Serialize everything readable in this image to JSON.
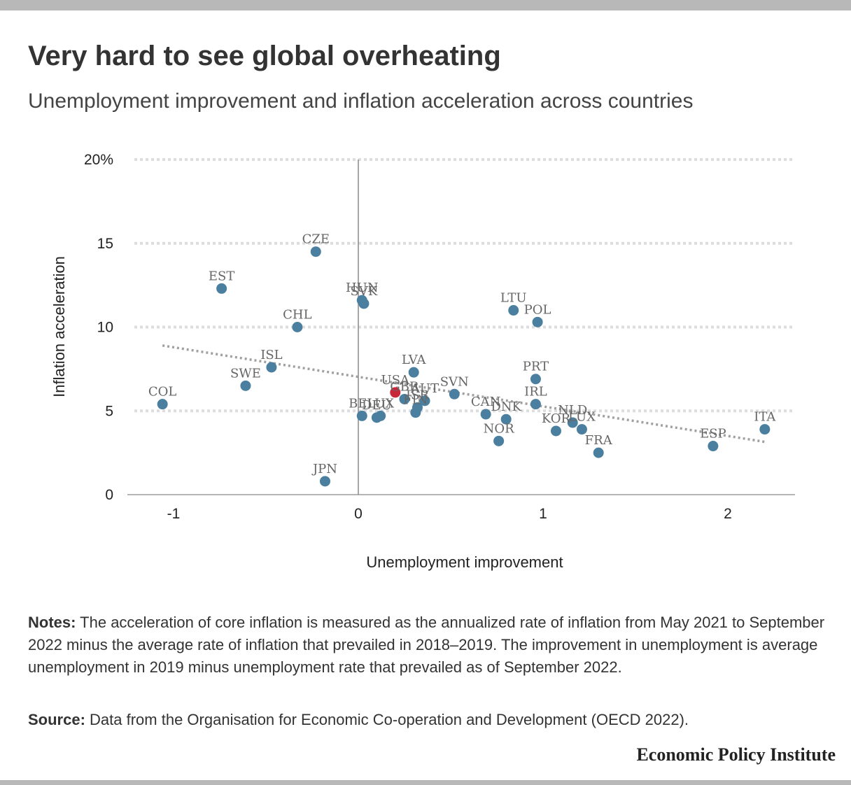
{
  "title": "Very hard to see global overheating",
  "subtitle": "Unemployment improvement and inflation acceleration across countries",
  "notes": {
    "label": "Notes:",
    "text": " The acceleration of core inflation is measured as the annualized rate of inflation from May 2021 to September 2022 minus the average rate of inflation that prevailed in 2018–2019. The improvement in unemployment is average unemployment in 2019 minus unemployment rate that prevailed as of September 2022."
  },
  "source": {
    "label": "Source:",
    "text": " Data from the Organisation for Economic Co-operation and Development (OECD 2022)."
  },
  "brand": "Economic Policy Institute",
  "colors": {
    "point": "#4a7fa0",
    "highlight": "#c8273a",
    "trend": "#a0a0a0",
    "grid": "#dddddd",
    "zero_axis": "#888888"
  },
  "chart_data": {
    "type": "scatter",
    "xlabel": "Unemployment improvement",
    "ylabel": "Inflation acceleration",
    "xlim": [
      -1.25,
      2.35
    ],
    "ylim": [
      0,
      20
    ],
    "x_ticks": [
      {
        "value": -1,
        "label": "-1"
      },
      {
        "value": 0,
        "label": "0"
      },
      {
        "value": 1,
        "label": "1"
      },
      {
        "value": 2,
        "label": "2"
      }
    ],
    "y_ticks": [
      {
        "value": 0,
        "label": "0"
      },
      {
        "value": 5,
        "label": "5"
      },
      {
        "value": 10,
        "label": "10"
      },
      {
        "value": 15,
        "label": "15"
      },
      {
        "value": 20,
        "label": "20%"
      }
    ],
    "grid": "horizontal-dotted",
    "points": [
      {
        "label": "COL",
        "x": -1.06,
        "y": 5.4
      },
      {
        "label": "EST",
        "x": -0.74,
        "y": 12.3
      },
      {
        "label": "SWE",
        "x": -0.61,
        "y": 6.5
      },
      {
        "label": "ISL",
        "x": -0.47,
        "y": 7.6
      },
      {
        "label": "CHL",
        "x": -0.33,
        "y": 10.0
      },
      {
        "label": "CZE",
        "x": -0.23,
        "y": 14.5
      },
      {
        "label": "JPN",
        "x": -0.18,
        "y": 0.8
      },
      {
        "label": "HUN",
        "x": 0.02,
        "y": 11.6
      },
      {
        "label": "SVK",
        "x": 0.03,
        "y": 11.4
      },
      {
        "label": "BEL",
        "x": 0.02,
        "y": 4.7
      },
      {
        "label": "DEU",
        "x": 0.1,
        "y": 4.6
      },
      {
        "label": "LUX",
        "x": 0.12,
        "y": 4.7
      },
      {
        "label": "USA",
        "x": 0.2,
        "y": 6.1,
        "highlight": true
      },
      {
        "label": "GBR",
        "x": 0.25,
        "y": 5.7
      },
      {
        "label": "LVA",
        "x": 0.3,
        "y": 7.3
      },
      {
        "label": "AUT",
        "x": 0.36,
        "y": 5.6
      },
      {
        "label": "ISR",
        "x": 0.32,
        "y": 5.2
      },
      {
        "label": "FIN",
        "x": 0.31,
        "y": 4.9
      },
      {
        "label": "SVN",
        "x": 0.52,
        "y": 6.0
      },
      {
        "label": "CAN",
        "x": 0.69,
        "y": 4.8
      },
      {
        "label": "DNK",
        "x": 0.8,
        "y": 4.5
      },
      {
        "label": "NOR",
        "x": 0.76,
        "y": 3.2
      },
      {
        "label": "LTU",
        "x": 0.84,
        "y": 11.0
      },
      {
        "label": "POL",
        "x": 0.97,
        "y": 10.3
      },
      {
        "label": "PRT",
        "x": 0.96,
        "y": 6.9
      },
      {
        "label": "IRL",
        "x": 0.96,
        "y": 5.4
      },
      {
        "label": "KOR",
        "x": 1.07,
        "y": 3.8
      },
      {
        "label": "NLD",
        "x": 1.16,
        "y": 4.3
      },
      {
        "label": "LUX",
        "x": 1.21,
        "y": 3.9
      },
      {
        "label": "FRA",
        "x": 1.3,
        "y": 2.5
      },
      {
        "label": "ESP",
        "x": 1.92,
        "y": 2.9
      },
      {
        "label": "ITA",
        "x": 2.2,
        "y": 3.9
      }
    ],
    "trendline": {
      "x": [
        -1.06,
        2.2
      ],
      "y": [
        8.9,
        3.15
      ]
    }
  }
}
